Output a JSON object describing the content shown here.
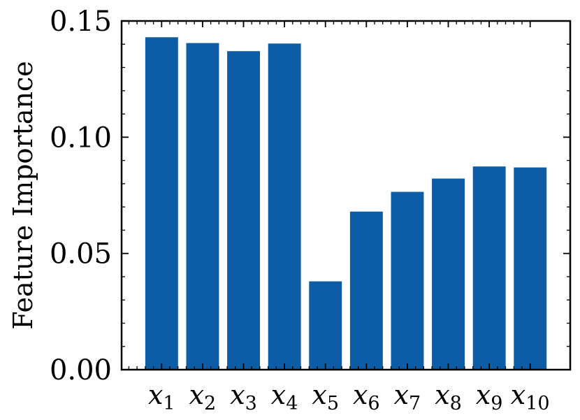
{
  "chart_data": {
    "type": "bar",
    "title": "",
    "ylabel": "Feature Importance",
    "xlabel": "",
    "ylim": [
      0,
      0.15
    ],
    "yticks": [
      "0.00",
      "0.05",
      "0.10",
      "0.15"
    ],
    "categories": [
      {
        "base": "x",
        "sub": "1"
      },
      {
        "base": "x",
        "sub": "2"
      },
      {
        "base": "x",
        "sub": "3"
      },
      {
        "base": "x",
        "sub": "4"
      },
      {
        "base": "x",
        "sub": "5"
      },
      {
        "base": "x",
        "sub": "6"
      },
      {
        "base": "x",
        "sub": "7"
      },
      {
        "base": "x",
        "sub": "8"
      },
      {
        "base": "x",
        "sub": "9"
      },
      {
        "base": "x",
        "sub": "10"
      }
    ],
    "values": [
      0.143,
      0.1405,
      0.137,
      0.1403,
      0.038,
      0.068,
      0.0765,
      0.0822,
      0.0874,
      0.087
    ],
    "bar_color": "#0c5da5",
    "grid": false,
    "legend": "none"
  }
}
